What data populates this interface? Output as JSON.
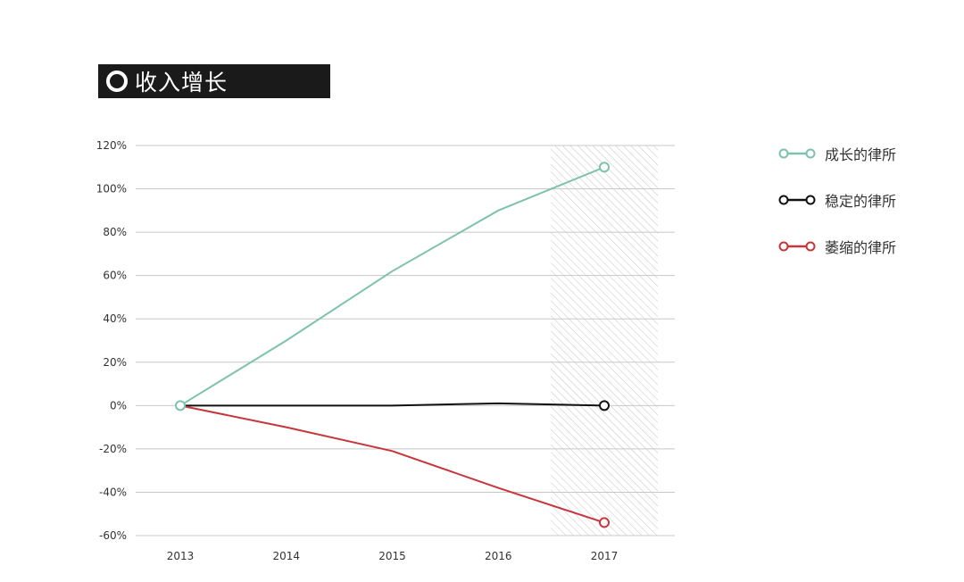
{
  "title": "收入增长",
  "chart_data": {
    "type": "line",
    "categories": [
      "2013",
      "2014",
      "2015",
      "2016",
      "2017"
    ],
    "series": [
      {
        "name": "成长的律所",
        "color": "#7cc2ad",
        "values": [
          0,
          30,
          62,
          90,
          110
        ]
      },
      {
        "name": "稳定的律所",
        "color": "#111111",
        "values": [
          0,
          0,
          0,
          1,
          0
        ]
      },
      {
        "name": "萎缩的律所",
        "color": "#c8353a",
        "values": [
          0,
          -10,
          -21,
          -38,
          -54
        ]
      }
    ],
    "yticks": [
      "120%",
      "100%",
      "80%",
      "60%",
      "40%",
      "20%",
      "0%",
      "-20%",
      "-40%",
      "-60%"
    ],
    "ylim": [
      -60,
      120
    ],
    "ylabel": "",
    "xlabel": "",
    "grid": true,
    "highlight_category": "2017",
    "legend_position": "right"
  }
}
